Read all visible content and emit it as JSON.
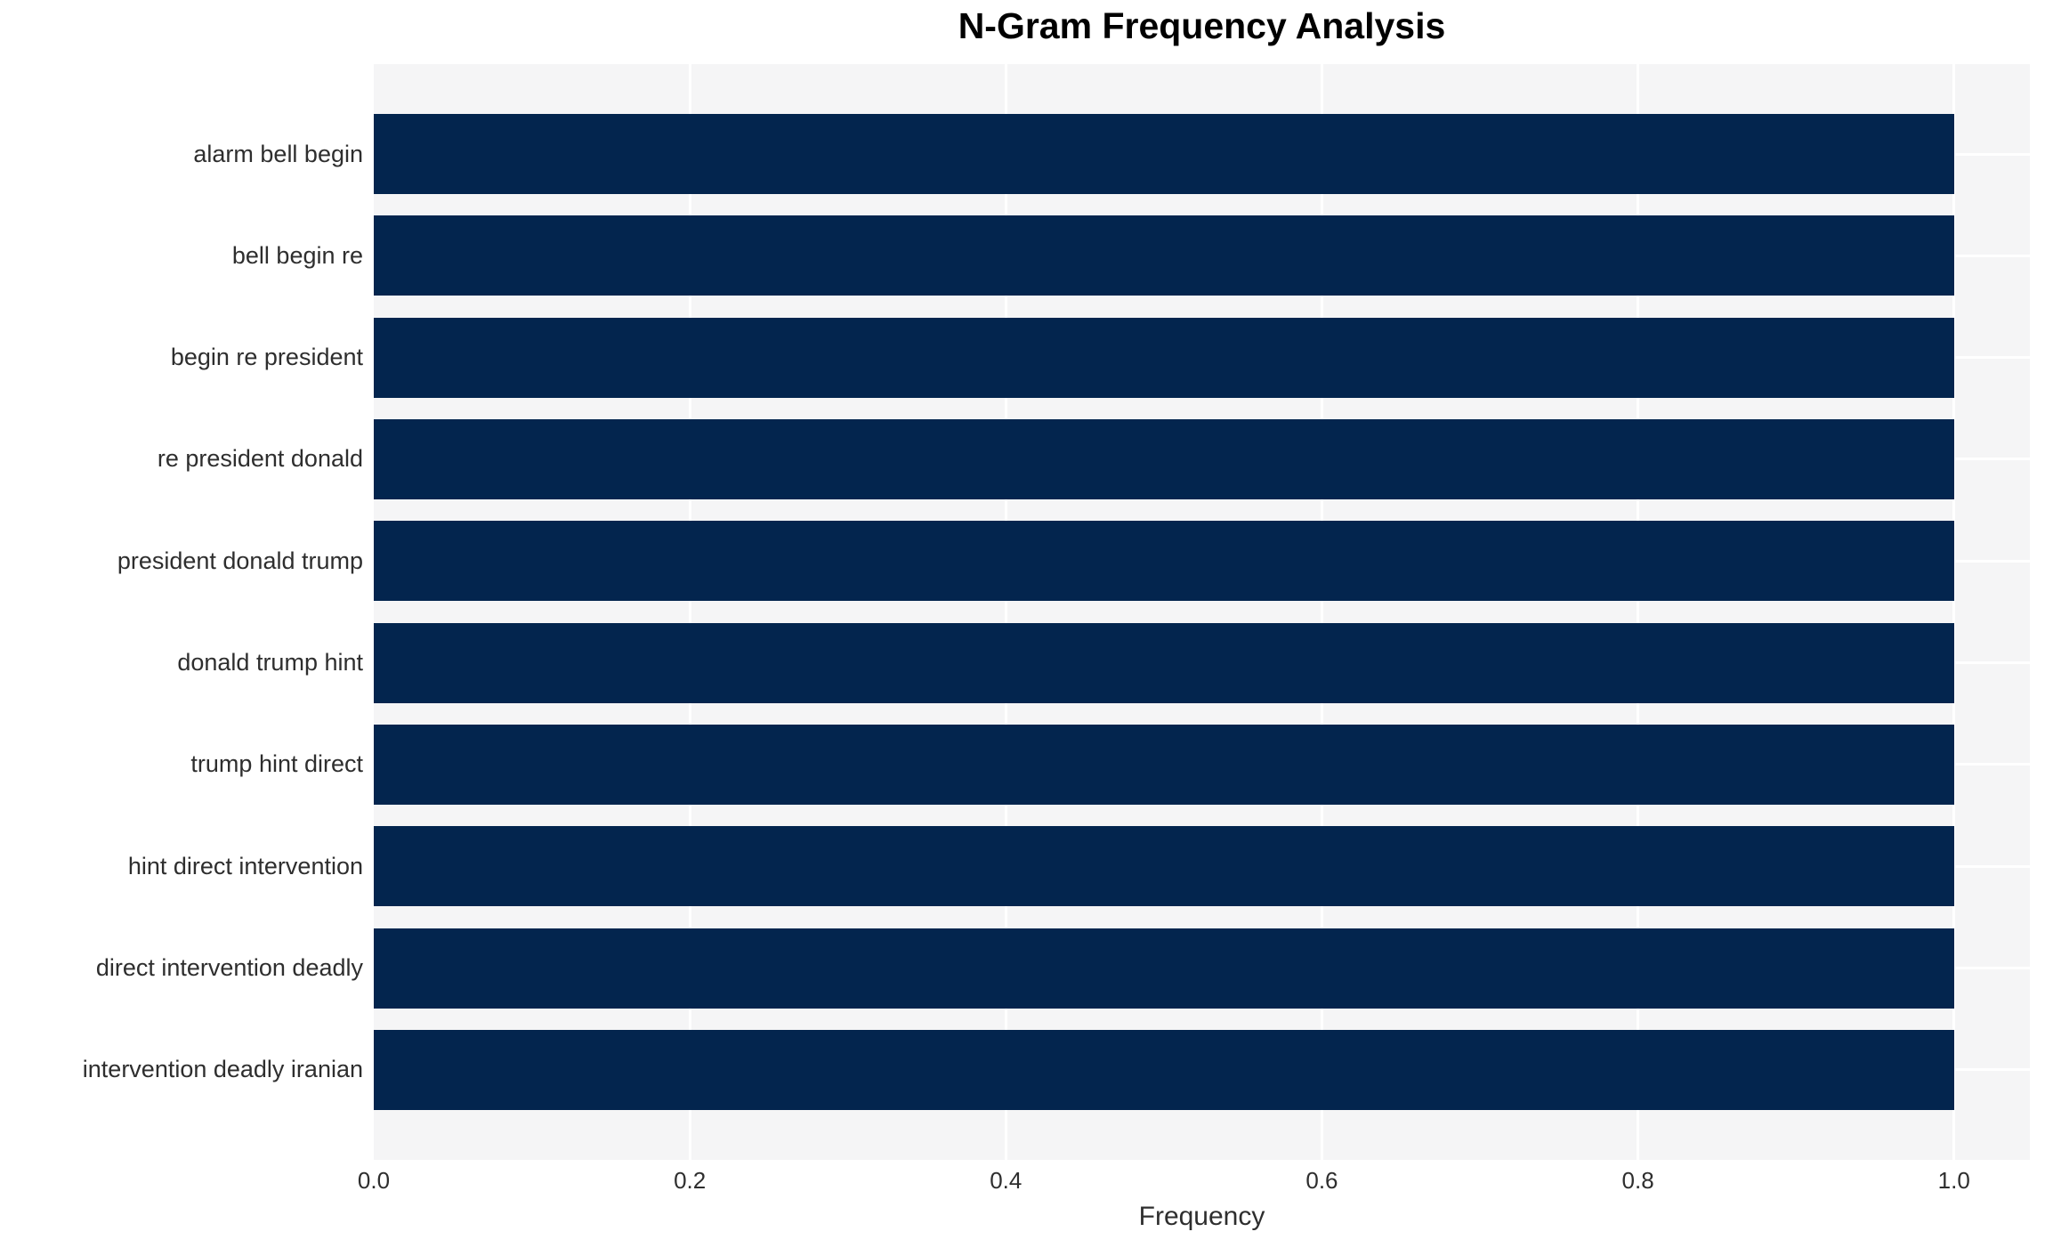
{
  "title": "N-Gram Frequency Analysis",
  "chart_data": {
    "type": "bar",
    "orientation": "horizontal",
    "title": "N-Gram Frequency Analysis",
    "categories": [
      "alarm bell begin",
      "bell begin re",
      "begin re president",
      "re president donald",
      "president donald trump",
      "donald trump hint",
      "trump hint direct",
      "hint direct intervention",
      "direct intervention deadly",
      "intervention deadly iranian"
    ],
    "values": [
      1.0,
      1.0,
      1.0,
      1.0,
      1.0,
      1.0,
      1.0,
      1.0,
      1.0,
      1.0
    ],
    "xlabel": "Frequency",
    "ylabel": "",
    "xticks": [
      0.0,
      0.2,
      0.4,
      0.6,
      0.8,
      1.0
    ],
    "xtick_labels": [
      "0.0",
      "0.2",
      "0.4",
      "0.6",
      "0.8",
      "1.0"
    ],
    "xlim": [
      0,
      1.048
    ],
    "grid": true,
    "legend": "none",
    "colors": {
      "bar": "#03254e",
      "plot_background": "#f5f5f6",
      "gridline": "#ffffff",
      "tick_text": "#2e2e2e",
      "title_text": "#000000"
    }
  }
}
